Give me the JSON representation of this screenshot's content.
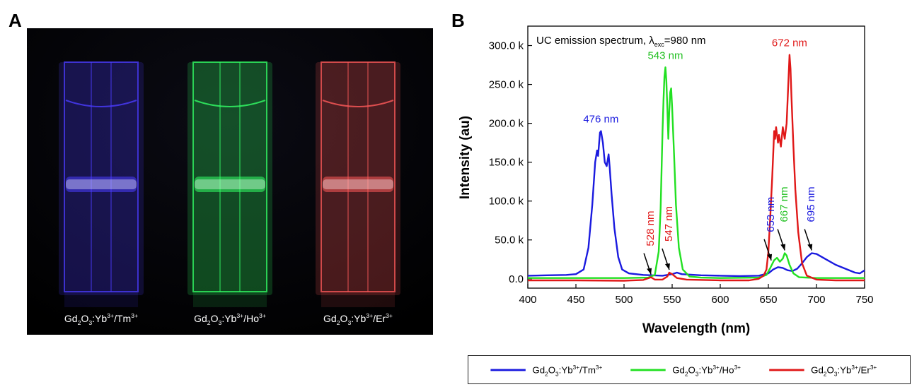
{
  "panel_a": {
    "letter": "A",
    "samples": [
      {
        "base": "Gd",
        "sub1": "2",
        "o": "O",
        "sub2": "3",
        "mid": ":Yb",
        "sup1": "3+",
        "slash": "/",
        "dopant": "Tm",
        "sup2": "3+",
        "glow": "#4b3cff"
      },
      {
        "base": "Gd",
        "sub1": "2",
        "o": "O",
        "sub2": "3",
        "mid": ":Yb",
        "sup1": "3+",
        "slash": "/",
        "dopant": "Ho",
        "sup2": "3+",
        "glow": "#33ff66"
      },
      {
        "base": "Gd",
        "sub1": "2",
        "o": "O",
        "sub2": "3",
        "mid": ":Yb",
        "sup1": "3+",
        "slash": "/",
        "dopant": "Er",
        "sup2": "3+",
        "glow": "#ff5a5a"
      }
    ]
  },
  "panel_b": {
    "letter": "B"
  },
  "chart_data": {
    "type": "line",
    "title_prefix": "UC emission spectrum, λ",
    "title_sub": "exc",
    "title_suffix": "=980 nm",
    "xlabel": "Wavelength (nm)",
    "ylabel": "Intensity (au)",
    "xlim": [
      400,
      750
    ],
    "ylim": [
      -12000,
      325000
    ],
    "xticks": [
      400,
      450,
      500,
      550,
      600,
      650,
      700,
      750
    ],
    "yticks": [
      0,
      50000,
      100000,
      150000,
      200000,
      250000,
      300000
    ],
    "ytick_labels": [
      "0.0",
      "50.0 k",
      "100.0 k",
      "150.0 k",
      "200.0 k",
      "250.0 k",
      "300.0 k"
    ],
    "grid": false,
    "legend_position": "below",
    "series": [
      {
        "label_parts": [
          "Gd",
          "2",
          "O",
          "3",
          ":Yb",
          "3+",
          "/Tm",
          "3+"
        ],
        "color": "#1a1adf",
        "points": [
          [
            400,
            4000
          ],
          [
            420,
            4500
          ],
          [
            440,
            5000
          ],
          [
            450,
            6000
          ],
          [
            458,
            12000
          ],
          [
            463,
            40000
          ],
          [
            467,
            95000
          ],
          [
            470,
            150000
          ],
          [
            472,
            165000
          ],
          [
            473,
            158000
          ],
          [
            475,
            188000
          ],
          [
            476,
            190000
          ],
          [
            478,
            175000
          ],
          [
            480,
            150000
          ],
          [
            482,
            145000
          ],
          [
            484,
            160000
          ],
          [
            485,
            145000
          ],
          [
            487,
            110000
          ],
          [
            490,
            65000
          ],
          [
            494,
            28000
          ],
          [
            498,
            12000
          ],
          [
            505,
            7000
          ],
          [
            520,
            5000
          ],
          [
            540,
            4000
          ],
          [
            550,
            6000
          ],
          [
            555,
            8000
          ],
          [
            560,
            6000
          ],
          [
            580,
            4500
          ],
          [
            600,
            4000
          ],
          [
            620,
            3500
          ],
          [
            640,
            4000
          ],
          [
            650,
            7000
          ],
          [
            655,
            12000
          ],
          [
            660,
            15000
          ],
          [
            665,
            14000
          ],
          [
            670,
            11000
          ],
          [
            675,
            10000
          ],
          [
            680,
            13000
          ],
          [
            685,
            20000
          ],
          [
            690,
            28000
          ],
          [
            695,
            33000
          ],
          [
            700,
            32000
          ],
          [
            710,
            25000
          ],
          [
            720,
            18000
          ],
          [
            730,
            13000
          ],
          [
            740,
            8000
          ],
          [
            745,
            7000
          ],
          [
            750,
            11000
          ]
        ]
      },
      {
        "label_parts": [
          "Gd",
          "2",
          "O",
          "3",
          ":Yb",
          "3+",
          "/Ho",
          "3+"
        ],
        "color": "#22e022",
        "points": [
          [
            400,
            1000
          ],
          [
            500,
            1000
          ],
          [
            525,
            1500
          ],
          [
            532,
            5000
          ],
          [
            536,
            35000
          ],
          [
            538,
            90000
          ],
          [
            540,
            190000
          ],
          [
            541,
            230000
          ],
          [
            542,
            260000
          ],
          [
            543,
            272000
          ],
          [
            544,
            255000
          ],
          [
            545,
            220000
          ],
          [
            546,
            180000
          ],
          [
            547,
            215000
          ],
          [
            548,
            240000
          ],
          [
            549,
            245000
          ],
          [
            550,
            220000
          ],
          [
            552,
            160000
          ],
          [
            554,
            95000
          ],
          [
            557,
            40000
          ],
          [
            561,
            12000
          ],
          [
            568,
            3000
          ],
          [
            580,
            1500
          ],
          [
            600,
            1000
          ],
          [
            640,
            1500
          ],
          [
            648,
            5000
          ],
          [
            652,
            14000
          ],
          [
            656,
            24000
          ],
          [
            659,
            27000
          ],
          [
            662,
            22000
          ],
          [
            665,
            26000
          ],
          [
            667,
            33000
          ],
          [
            669,
            30000
          ],
          [
            672,
            18000
          ],
          [
            676,
            7000
          ],
          [
            682,
            2000
          ],
          [
            700,
            1000
          ],
          [
            750,
            1000
          ]
        ]
      },
      {
        "label_parts": [
          "Gd",
          "2",
          "O",
          "3",
          ":Yb",
          "3+",
          "/Er",
          "3+"
        ],
        "color": "#e01818",
        "points": [
          [
            400,
            -2000
          ],
          [
            450,
            -2000
          ],
          [
            500,
            -2500
          ],
          [
            520,
            -1500
          ],
          [
            528,
            2000
          ],
          [
            532,
            -1000
          ],
          [
            540,
            -1000
          ],
          [
            545,
            3000
          ],
          [
            547,
            8000
          ],
          [
            550,
            6000
          ],
          [
            555,
            1000
          ],
          [
            565,
            -1000
          ],
          [
            600,
            -2000
          ],
          [
            630,
            -2000
          ],
          [
            640,
            0
          ],
          [
            645,
            4000
          ],
          [
            648,
            12000
          ],
          [
            650,
            35000
          ],
          [
            652,
            80000
          ],
          [
            654,
            130000
          ],
          [
            656,
            190000
          ],
          [
            657,
            180000
          ],
          [
            658,
            195000
          ],
          [
            660,
            175000
          ],
          [
            661,
            185000
          ],
          [
            663,
            170000
          ],
          [
            665,
            195000
          ],
          [
            667,
            180000
          ],
          [
            669,
            200000
          ],
          [
            670,
            230000
          ],
          [
            671,
            260000
          ],
          [
            672,
            288000
          ],
          [
            673,
            270000
          ],
          [
            674,
            235000
          ],
          [
            676,
            170000
          ],
          [
            678,
            115000
          ],
          [
            681,
            60000
          ],
          [
            685,
            20000
          ],
          [
            690,
            4000
          ],
          [
            700,
            -1000
          ],
          [
            720,
            -2000
          ],
          [
            750,
            -2000
          ]
        ]
      }
    ],
    "annotations": [
      {
        "text": "476 nm",
        "x": 476,
        "y": 190000,
        "color": "#1a1adf",
        "rotated": false
      },
      {
        "text": "543 nm",
        "x": 543,
        "y": 272000,
        "color": "#22c022",
        "rotated": false
      },
      {
        "text": "672 nm",
        "x": 672,
        "y": 288000,
        "color": "#e01818",
        "rotated": false
      },
      {
        "text": "528 nm",
        "x": 528,
        "y": 2000,
        "color": "#e01818",
        "rotated": true
      },
      {
        "text": "547 nm",
        "x": 547,
        "y": 8000,
        "color": "#e01818",
        "rotated": true
      },
      {
        "text": "653 nm",
        "x": 653,
        "y": 20000,
        "color": "#1a1adf",
        "rotated": true
      },
      {
        "text": "667 nm",
        "x": 667,
        "y": 33000,
        "color": "#22c022",
        "rotated": true
      },
      {
        "text": "695 nm",
        "x": 695,
        "y": 33000,
        "color": "#1a1adf",
        "rotated": true
      }
    ]
  }
}
